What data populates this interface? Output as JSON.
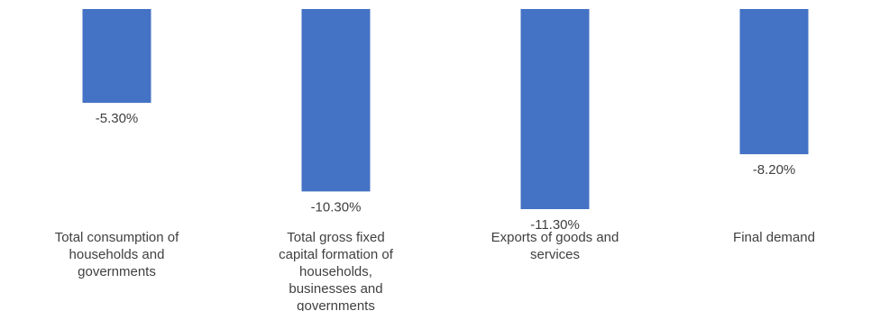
{
  "chart_data": {
    "type": "bar",
    "categories": [
      "Total consumption of households and governments",
      "Total gross fixed capital formation of households, businesses and governments",
      "Exports of goods and services",
      "Final demand"
    ],
    "category_lines": [
      [
        "Total consumption of",
        "households and",
        "governments"
      ],
      [
        "Total gross fixed",
        "capital formation of",
        "households,",
        "businesses and",
        "governments"
      ],
      [
        "Exports of goods and",
        "services"
      ],
      [
        "Final demand"
      ]
    ],
    "values": [
      -5.3,
      -10.3,
      -11.3,
      -8.2
    ],
    "data_labels": [
      "-5.30%",
      "-10.30%",
      "-11.30%",
      "-8.20%"
    ],
    "bar_color": "#4472C4",
    "title": "",
    "xlabel": "",
    "ylabel": ""
  }
}
